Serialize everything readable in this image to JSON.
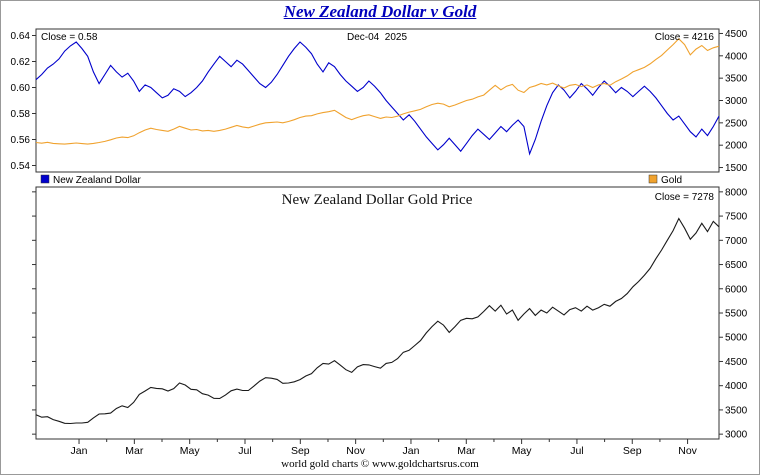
{
  "title": "New Zealand Dollar v Gold",
  "footer": "world gold charts © www.goldchartsrus.com",
  "chart_data": [
    {
      "type": "line",
      "title": "",
      "annotations": {
        "close_left": "Close = 0.58",
        "date": "Dec-04  2025",
        "close_right": "Close = 4216"
      },
      "legend_position": "bottom",
      "legend": [
        {
          "label": "New Zealand Dollar",
          "color": "#0000cc"
        },
        {
          "label": "Gold",
          "color": "#f0a22e"
        }
      ],
      "left_axis": {
        "range": [
          0.535,
          0.645
        ],
        "ticks": [
          0.54,
          0.56,
          0.58,
          0.6,
          0.62,
          0.64
        ],
        "tick_labels": [
          "0.54",
          "0.56",
          "0.58",
          "0.60",
          "0.62",
          "0.64"
        ]
      },
      "right_axis": {
        "range": [
          1400,
          4600
        ],
        "ticks": [
          1500,
          2000,
          2500,
          3000,
          3500,
          4000,
          4500
        ]
      },
      "series": [
        {
          "name": "New Zealand Dollar",
          "axis": "left",
          "color": "#0000cc",
          "close": 0.58,
          "values": [
            0.606,
            0.61,
            0.615,
            0.618,
            0.622,
            0.628,
            0.632,
            0.635,
            0.63,
            0.624,
            0.612,
            0.603,
            0.61,
            0.617,
            0.612,
            0.608,
            0.611,
            0.605,
            0.597,
            0.602,
            0.6,
            0.596,
            0.592,
            0.594,
            0.599,
            0.597,
            0.593,
            0.596,
            0.6,
            0.605,
            0.612,
            0.618,
            0.624,
            0.62,
            0.616,
            0.621,
            0.618,
            0.613,
            0.608,
            0.603,
            0.6,
            0.604,
            0.61,
            0.617,
            0.624,
            0.63,
            0.635,
            0.631,
            0.626,
            0.618,
            0.612,
            0.619,
            0.616,
            0.61,
            0.605,
            0.601,
            0.597,
            0.6,
            0.605,
            0.601,
            0.596,
            0.59,
            0.585,
            0.58,
            0.575,
            0.579,
            0.574,
            0.568,
            0.562,
            0.557,
            0.552,
            0.556,
            0.561,
            0.556,
            0.551,
            0.557,
            0.563,
            0.568,
            0.564,
            0.56,
            0.565,
            0.57,
            0.566,
            0.571,
            0.575,
            0.57,
            0.549,
            0.56,
            0.574,
            0.586,
            0.596,
            0.602,
            0.598,
            0.592,
            0.597,
            0.603,
            0.599,
            0.594,
            0.6,
            0.605,
            0.601,
            0.596,
            0.6,
            0.597,
            0.593,
            0.597,
            0.601,
            0.597,
            0.592,
            0.586,
            0.58,
            0.575,
            0.578,
            0.572,
            0.566,
            0.562,
            0.568,
            0.563,
            0.57,
            0.578
          ]
        },
        {
          "name": "Gold",
          "axis": "right",
          "color": "#f0a22e",
          "close": 4216,
          "values": [
            2060,
            2045,
            2065,
            2040,
            2030,
            2025,
            2035,
            2050,
            2035,
            2025,
            2040,
            2060,
            2085,
            2120,
            2160,
            2180,
            2170,
            2210,
            2280,
            2340,
            2380,
            2350,
            2330,
            2310,
            2360,
            2420,
            2380,
            2340,
            2350,
            2320,
            2330,
            2310,
            2330,
            2360,
            2400,
            2440,
            2410,
            2390,
            2430,
            2470,
            2500,
            2510,
            2520,
            2500,
            2530,
            2570,
            2620,
            2650,
            2660,
            2700,
            2730,
            2750,
            2780,
            2700,
            2620,
            2570,
            2620,
            2660,
            2680,
            2640,
            2600,
            2630,
            2620,
            2650,
            2700,
            2740,
            2770,
            2800,
            2860,
            2910,
            2940,
            2920,
            2860,
            2900,
            2950,
            3000,
            3030,
            3080,
            3120,
            3230,
            3340,
            3240,
            3320,
            3360,
            3230,
            3180,
            3290,
            3330,
            3380,
            3350,
            3390,
            3330,
            3280,
            3340,
            3360,
            3310,
            3350,
            3290,
            3350,
            3380,
            3340,
            3420,
            3480,
            3550,
            3640,
            3690,
            3740,
            3820,
            3920,
            4010,
            4130,
            4250,
            4380,
            4250,
            4020,
            4150,
            4230,
            4120,
            4180,
            4216
          ]
        }
      ]
    },
    {
      "type": "line",
      "title": "New Zealand Dollar Gold Price",
      "annotations": {
        "close_right": "Close = 7278"
      },
      "right_axis": {
        "range": [
          2900,
          8100
        ],
        "ticks": [
          3000,
          3500,
          4000,
          4500,
          5000,
          5500,
          6000,
          6500,
          7000,
          7500,
          8000
        ]
      },
      "x_axis": {
        "labels": [
          "Jan",
          "Mar",
          "May",
          "Jul",
          "Sep",
          "Nov",
          "Jan",
          "Mar",
          "May",
          "Jul",
          "Sep",
          "Nov"
        ]
      },
      "series": [
        {
          "name": "NZD Gold Price",
          "axis": "right",
          "color": "#1a1a1a",
          "close": 7278,
          "values": [
            3400,
            3350,
            3360,
            3300,
            3265,
            3225,
            3220,
            3230,
            3230,
            3245,
            3335,
            3415,
            3420,
            3435,
            3530,
            3585,
            3550,
            3655,
            3820,
            3890,
            3965,
            3945,
            3935,
            3890,
            3940,
            4055,
            4015,
            3925,
            3915,
            3835,
            3805,
            3740,
            3735,
            3805,
            3895,
            3930,
            3900,
            3900,
            3995,
            4095,
            4165,
            4155,
            4130,
            4050,
            4055,
            4080,
            4125,
            4200,
            4250,
            4370,
            4460,
            4445,
            4515,
            4425,
            4330,
            4275,
            4390,
            4435,
            4430,
            4395,
            4360,
            4460,
            4480,
            4560,
            4690,
            4730,
            4830,
            4930,
            5090,
            5220,
            5330,
            5250,
            5100,
            5220,
            5350,
            5390,
            5380,
            5420,
            5530,
            5650,
            5540,
            5660,
            5480,
            5560,
            5350,
            5480,
            5590,
            5450,
            5560,
            5500,
            5620,
            5540,
            5460,
            5570,
            5610,
            5540,
            5640,
            5560,
            5610,
            5680,
            5640,
            5740,
            5800,
            5900,
            6040,
            6150,
            6280,
            6420,
            6620,
            6800,
            7000,
            7200,
            7450,
            7250,
            7020,
            7150,
            7350,
            7180,
            7390,
            7278
          ]
        }
      ]
    }
  ]
}
